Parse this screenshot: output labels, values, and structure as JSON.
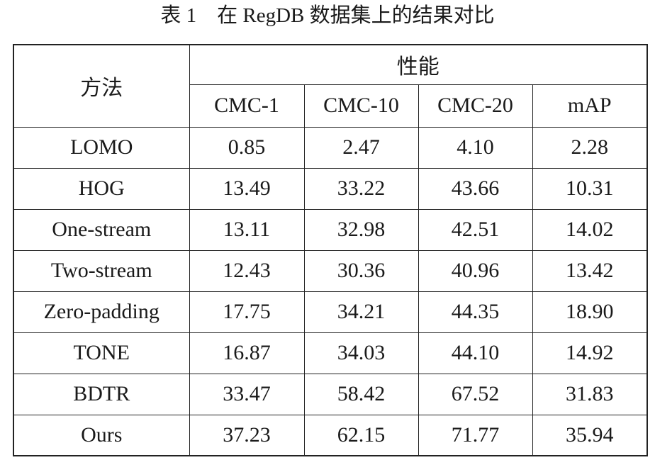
{
  "title": "表 1　在 RegDB 数据集上的结果对比",
  "table": {
    "header": {
      "method": "方法",
      "group": "性能",
      "columns": [
        "CMC-1",
        "CMC-10",
        "CMC-20",
        "mAP"
      ]
    },
    "rows": [
      [
        "LOMO",
        "0.85",
        "2.47",
        "4.10",
        "2.28"
      ],
      [
        "HOG",
        "13.49",
        "33.22",
        "43.66",
        "10.31"
      ],
      [
        "One-stream",
        "13.11",
        "32.98",
        "42.51",
        "14.02"
      ],
      [
        "Two-stream",
        "12.43",
        "30.36",
        "40.96",
        "13.42"
      ],
      [
        "Zero-padding",
        "17.75",
        "34.21",
        "44.35",
        "18.90"
      ],
      [
        "TONE",
        "16.87",
        "34.03",
        "44.10",
        "14.92"
      ],
      [
        "BDTR",
        "33.47",
        "58.42",
        "67.52",
        "31.83"
      ],
      [
        "Ours",
        "37.23",
        "62.15",
        "71.77",
        "35.94"
      ]
    ]
  }
}
